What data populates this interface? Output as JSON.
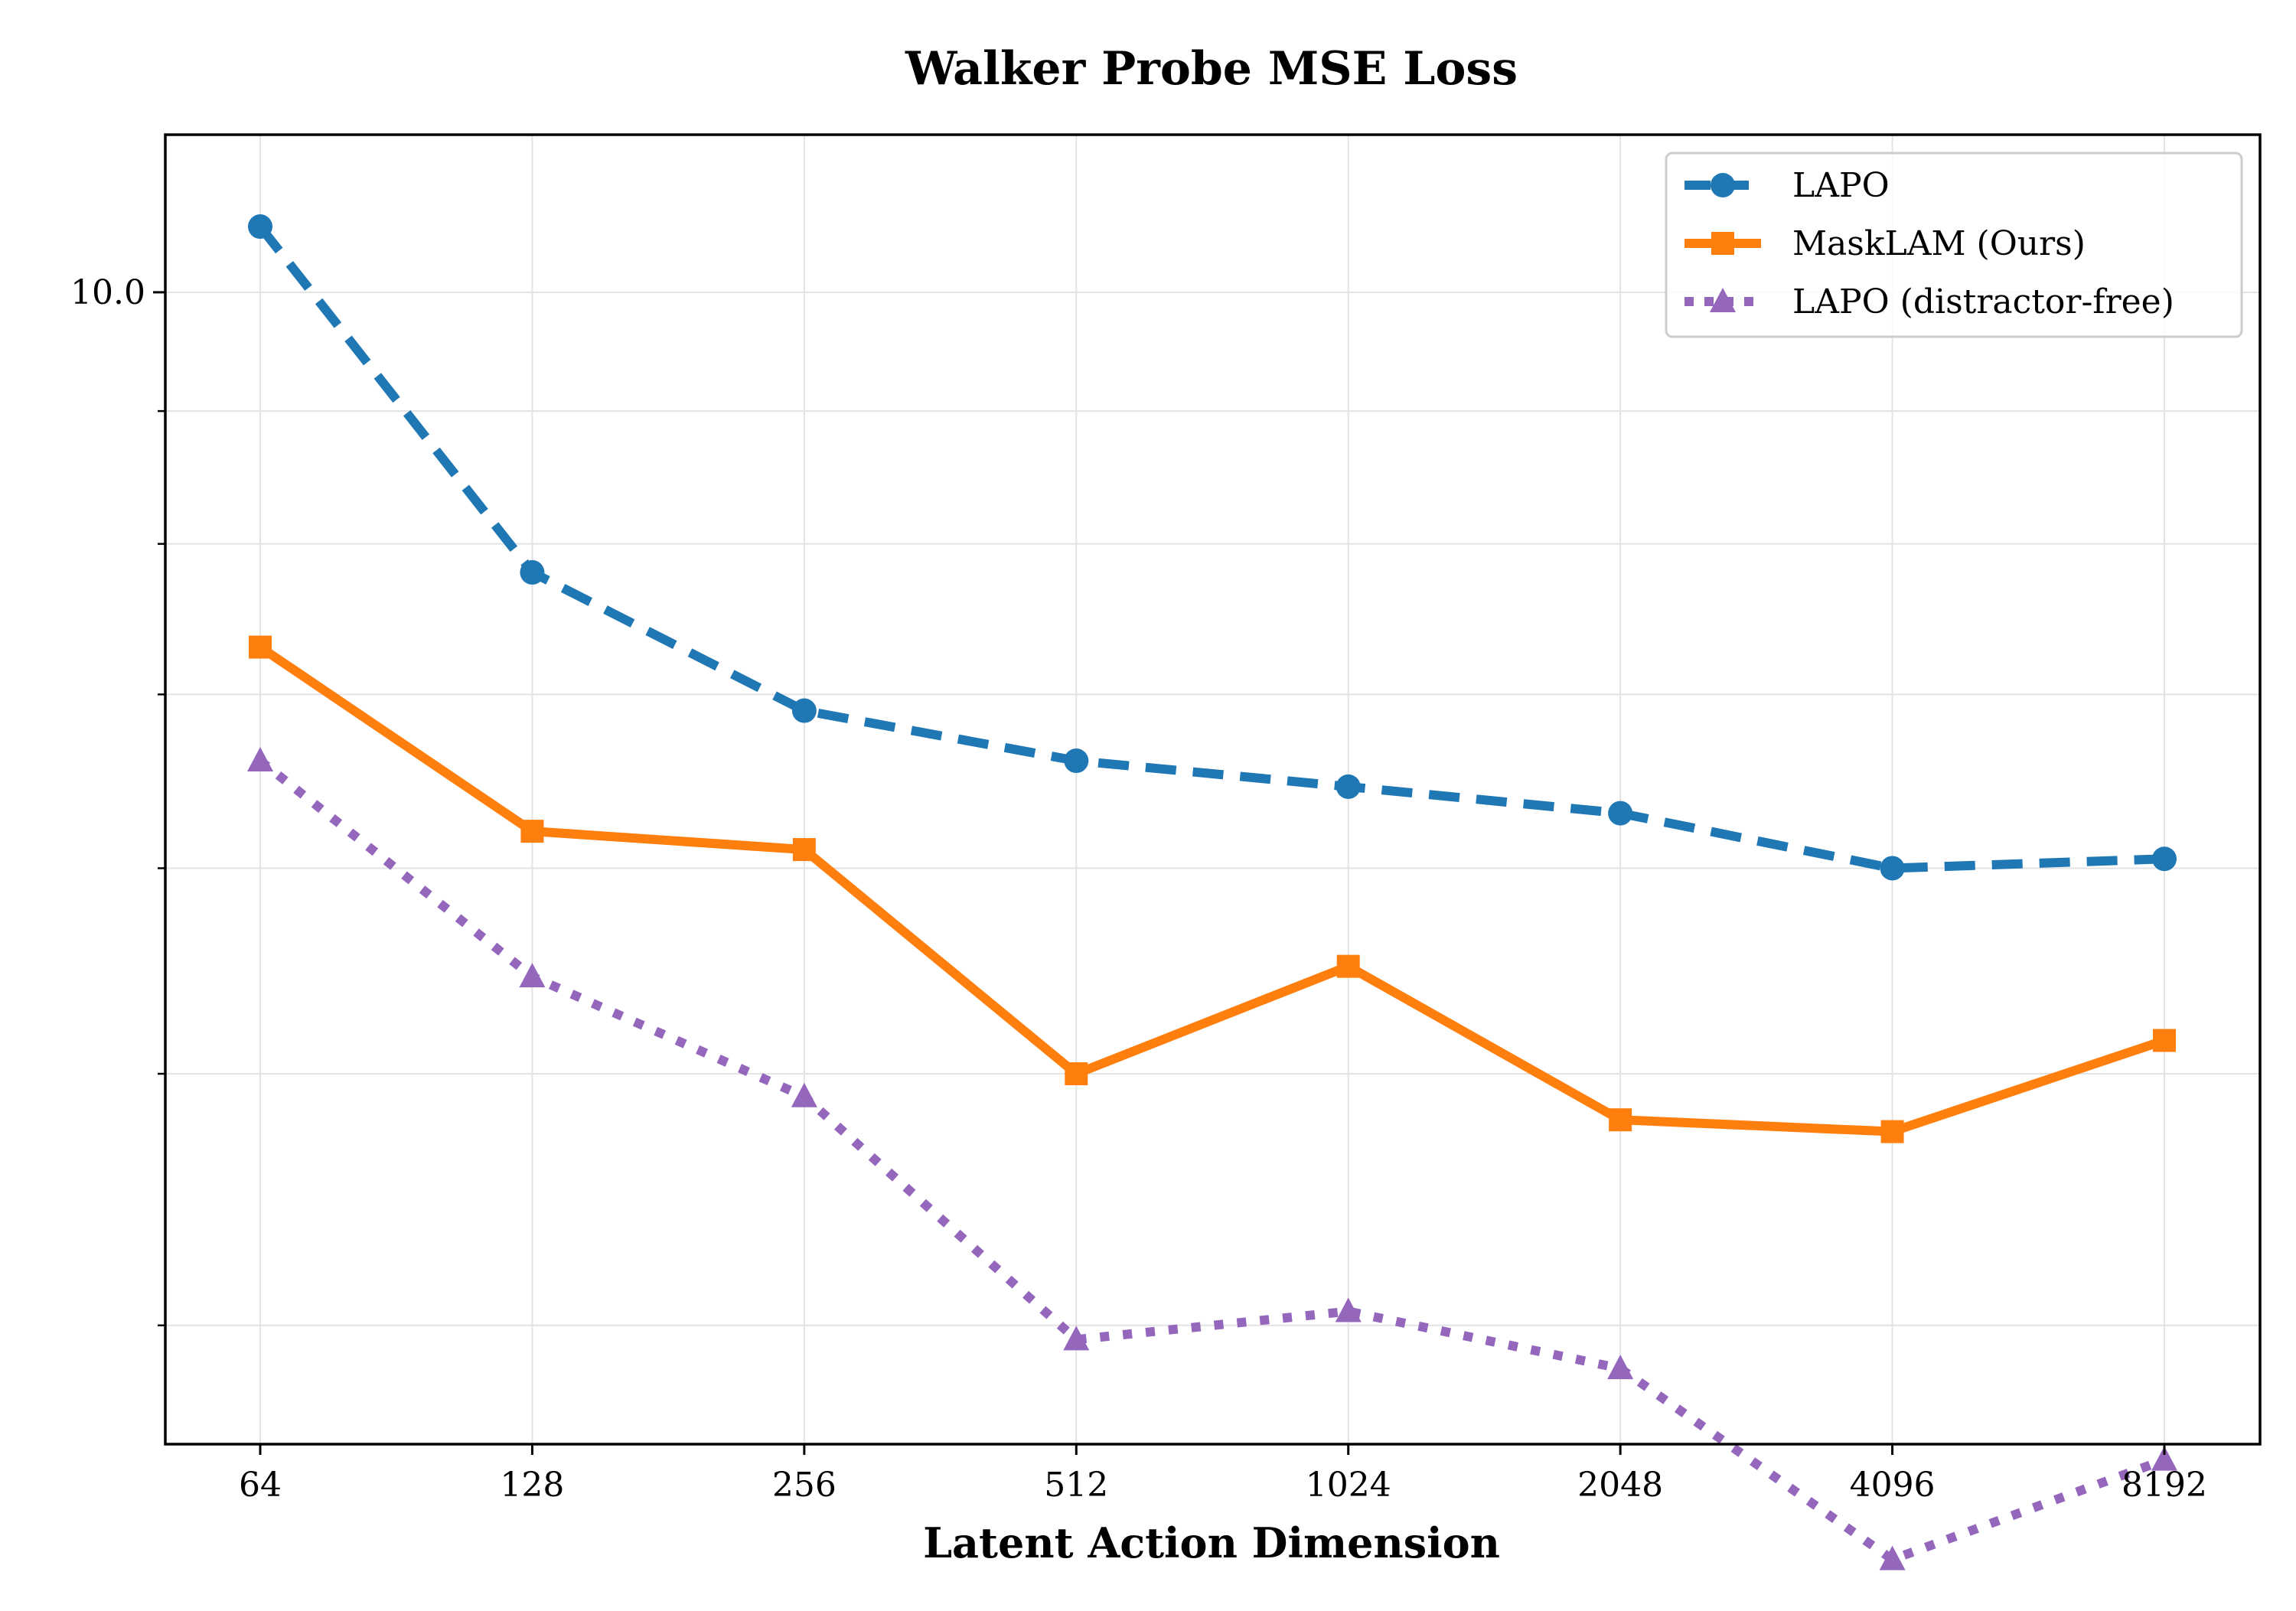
{
  "chart_data": {
    "type": "line",
    "title": "Walker Probe MSE Loss",
    "xlabel": "Latent Action Dimension",
    "ylabel": "",
    "x_scale": "log2",
    "y_scale": "log",
    "categories": [
      "64",
      "128",
      "256",
      "512",
      "1024",
      "2048",
      "4096",
      "8192"
    ],
    "x": [
      64,
      128,
      256,
      512,
      1024,
      2048,
      4096,
      8192
    ],
    "ylim": [
      3.6,
      11.5
    ],
    "y_major_ticks": [
      10
    ],
    "y_major_tick_labels": [
      "10.0"
    ],
    "y_minor_ticks": [
      4,
      5,
      6,
      7,
      8,
      9
    ],
    "grid": true,
    "legend_position": "top-right",
    "series": [
      {
        "name": "LAPO",
        "color": "#1f77b4",
        "linestyle": "dashed",
        "marker": "circle",
        "values": [
          10.6,
          7.8,
          6.9,
          6.6,
          6.45,
          6.3,
          6.0,
          6.05
        ]
      },
      {
        "name": "MaskLAM (Ours)",
        "color": "#ff7f0e",
        "linestyle": "solid",
        "marker": "square",
        "values": [
          7.3,
          6.2,
          6.1,
          5.0,
          5.5,
          4.8,
          4.75,
          5.15
        ]
      },
      {
        "name": "LAPO (distractor-free)",
        "color": "#9467bd",
        "linestyle": "dotted",
        "marker": "triangle",
        "values": [
          6.6,
          5.45,
          4.9,
          3.95,
          4.05,
          3.85,
          3.25,
          3.55
        ]
      }
    ]
  }
}
